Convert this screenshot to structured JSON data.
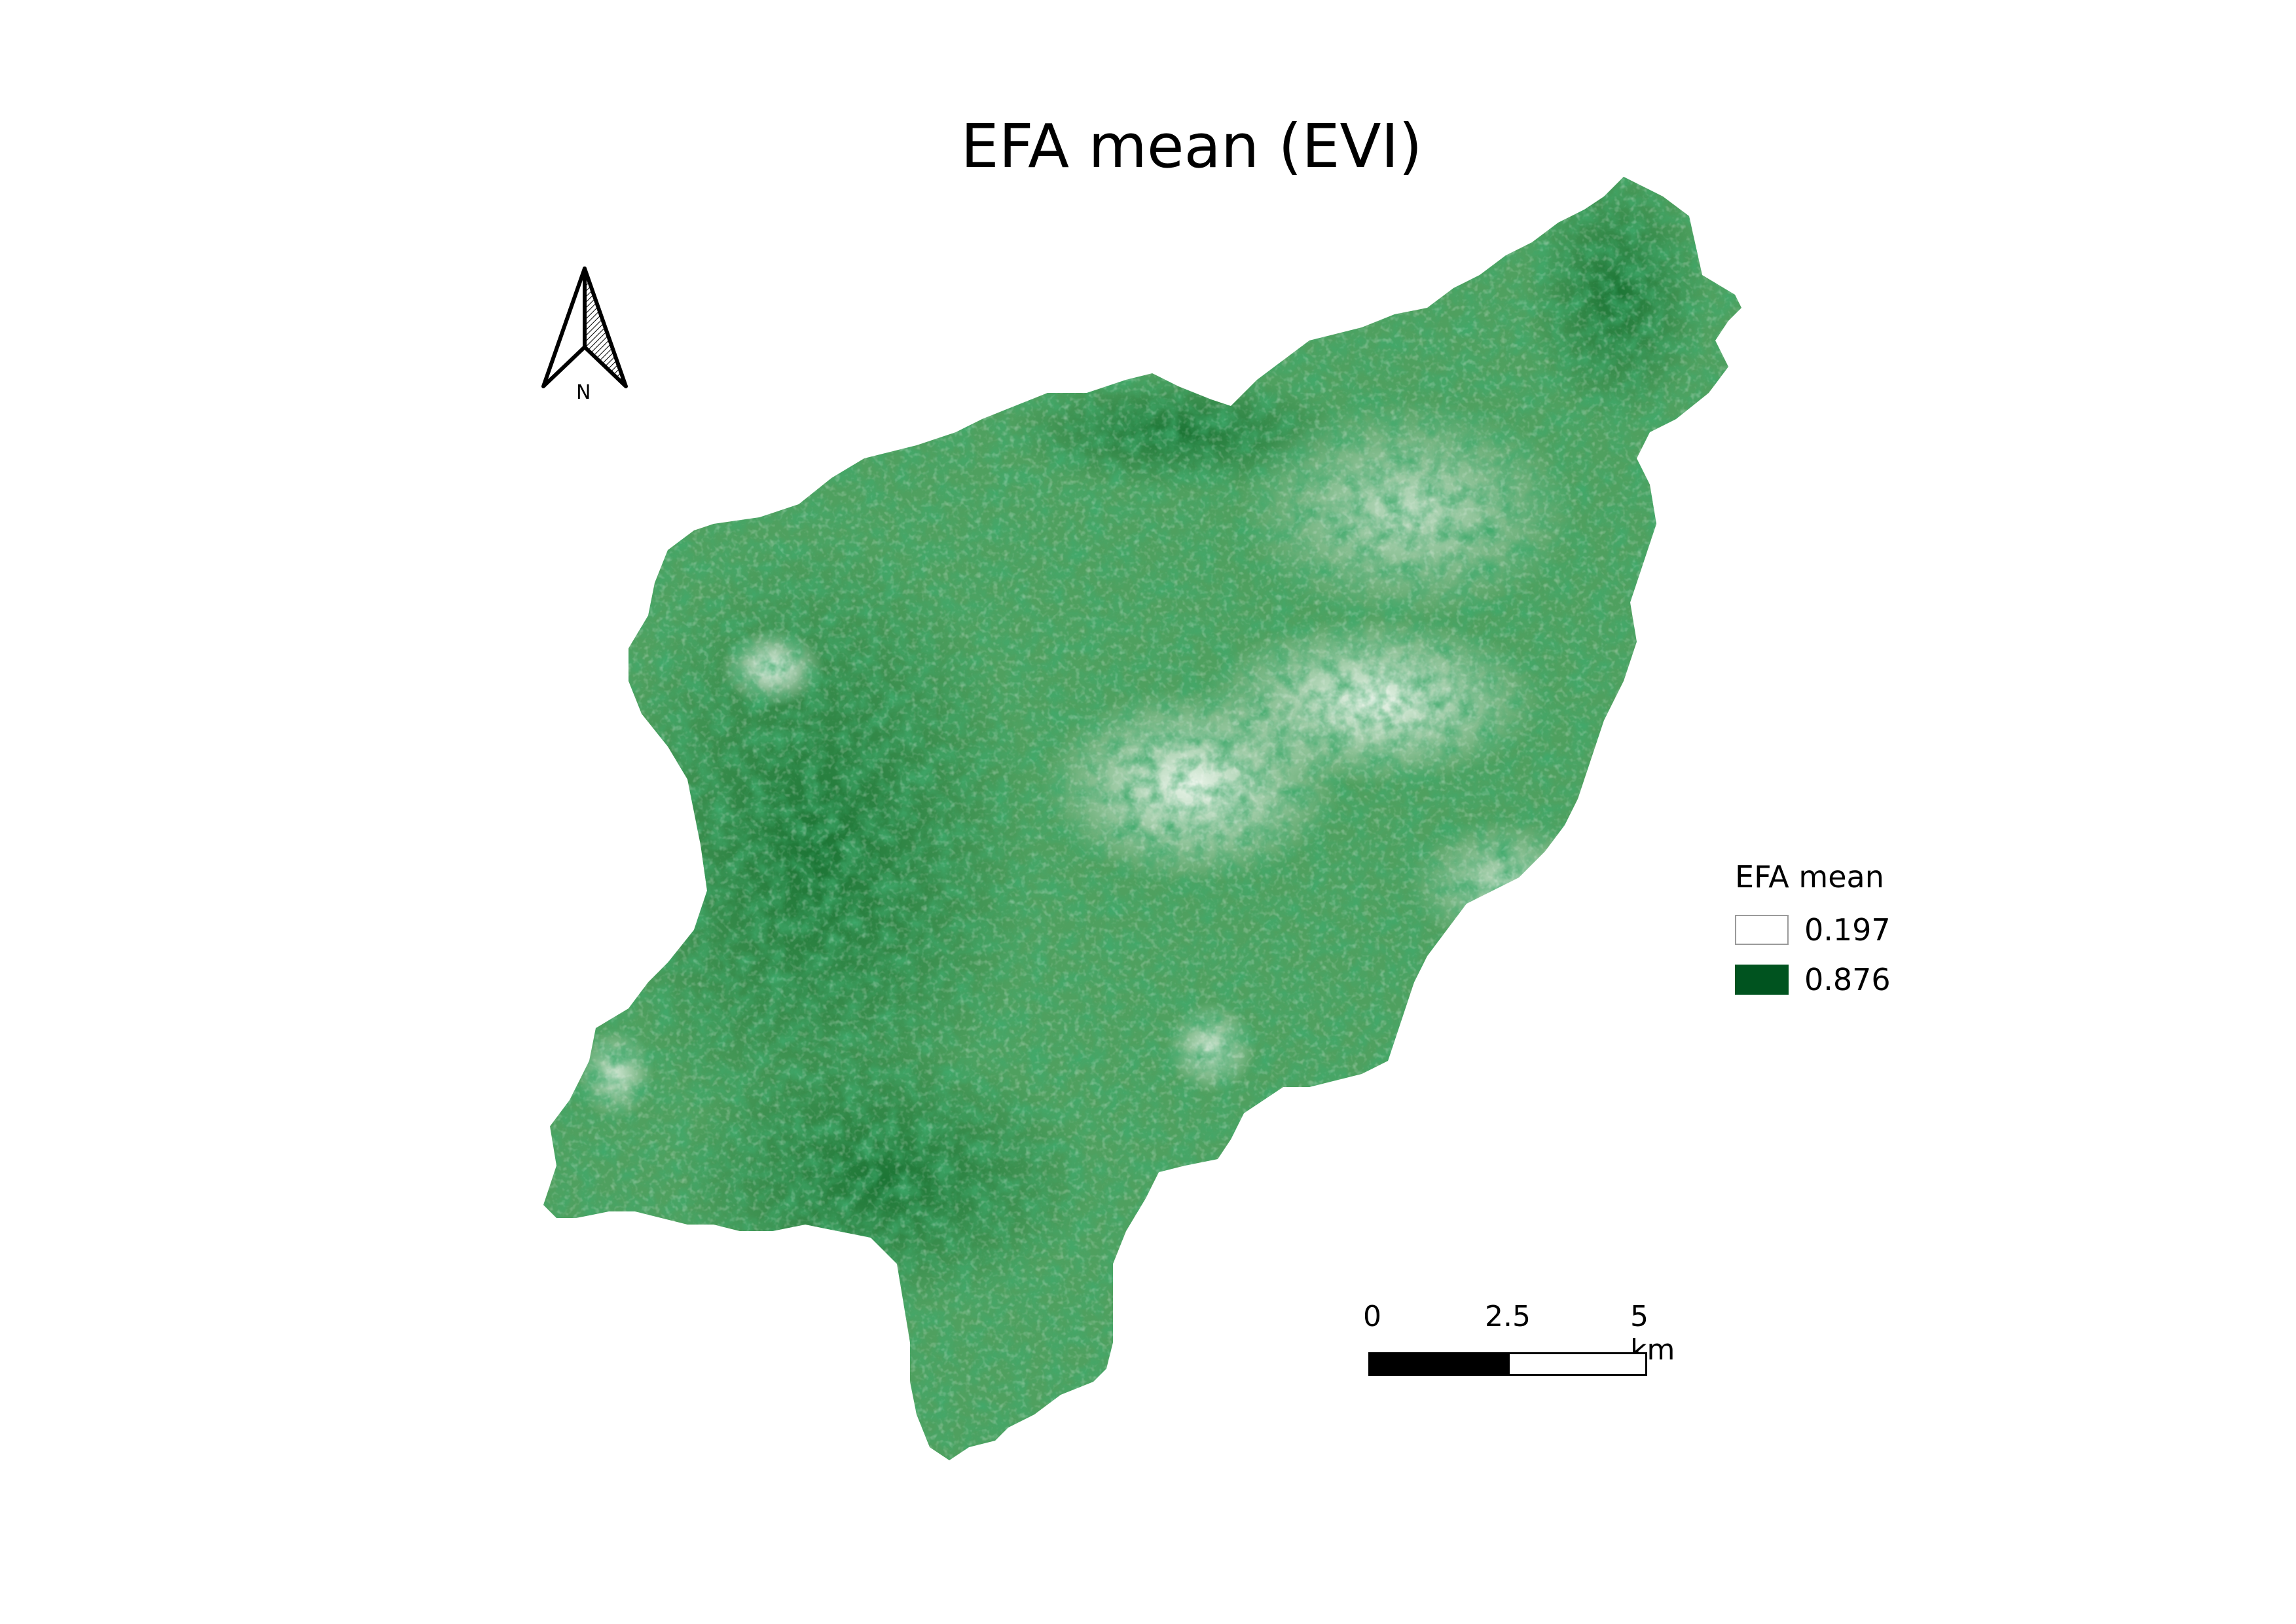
{
  "title": "EFA mean (EVI)",
  "north_arrow": {
    "label": "N",
    "icon": "north-arrow-icon"
  },
  "legend": {
    "title": "EFA mean",
    "items": [
      {
        "label": "0.197",
        "color": "#ffffff"
      },
      {
        "label": "0.876",
        "color": "#00531f"
      }
    ]
  },
  "scale_bar": {
    "labels": [
      "0",
      "2.5",
      "5 km"
    ],
    "units": "km",
    "segments": [
      {
        "from": 0,
        "to": 2.5,
        "fill": "#000000"
      },
      {
        "from": 2.5,
        "to": 5,
        "fill": "#ffffff"
      }
    ]
  },
  "colors": {
    "ramp_low": "#ffffff",
    "ramp_high": "#00531f",
    "map_dominant": "#3d9650"
  }
}
